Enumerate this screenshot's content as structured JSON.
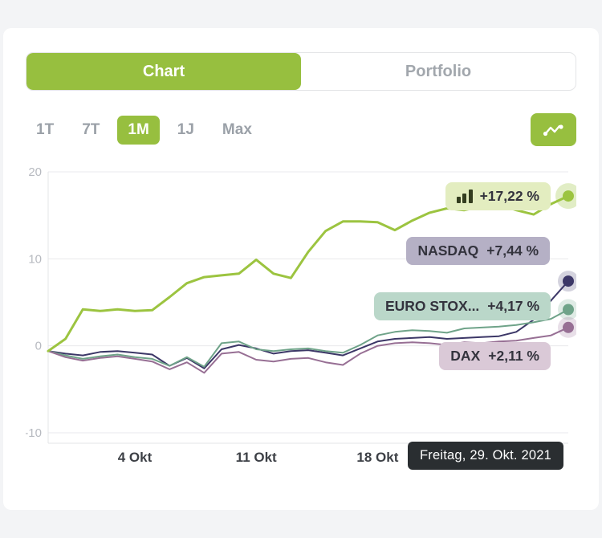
{
  "colors": {
    "accent": "#97bf3f",
    "page_bg": "#f3f4f6",
    "card_bg": "#ffffff",
    "muted_text": "#9ba1a8",
    "grid": "#e9eaec",
    "tooltip_bg": "#2a2e31"
  },
  "tabs": [
    {
      "label": "Chart",
      "active": true
    },
    {
      "label": "Portfolio",
      "active": false
    }
  ],
  "ranges": [
    {
      "label": "1T",
      "active": false
    },
    {
      "label": "7T",
      "active": false
    },
    {
      "label": "1M",
      "active": true
    },
    {
      "label": "1J",
      "active": false
    },
    {
      "label": "Max",
      "active": false
    }
  ],
  "chart_data": {
    "type": "line",
    "ylim": [
      -10,
      20
    ],
    "y_ticks": [
      20,
      10,
      0,
      -10
    ],
    "x_ticks": [
      {
        "label": "4 Okt",
        "day": 5
      },
      {
        "label": "11 Okt",
        "day": 12
      },
      {
        "label": "18 Okt",
        "day": 19
      }
    ],
    "days": 30,
    "grid": true,
    "tooltip": "Freitag, 29. Okt. 2021",
    "series": [
      {
        "name": "",
        "icon": "bar-chart-icon",
        "change_label": "+17,22 %",
        "color": "#9cc440",
        "badge_bg": "#e3edc0",
        "values": [
          -0.6,
          0.8,
          4.2,
          4.0,
          4.2,
          4.0,
          4.1,
          5.6,
          7.2,
          7.9,
          8.1,
          8.3,
          9.9,
          8.3,
          7.8,
          10.8,
          13.2,
          14.3,
          14.3,
          14.2,
          13.3,
          14.4,
          15.3,
          15.8,
          15.6,
          16.0,
          16.2,
          15.6,
          15.1,
          16.3,
          17.22
        ]
      },
      {
        "name": "NASDAQ",
        "change_label": "+7,44 %",
        "color": "#3c3767",
        "badge_bg": "#b5b0c5",
        "values": [
          -0.6,
          -0.9,
          -1.1,
          -0.7,
          -0.6,
          -0.8,
          -1.0,
          -2.3,
          -1.4,
          -2.6,
          -0.4,
          0.1,
          -0.3,
          -0.9,
          -0.6,
          -0.5,
          -0.8,
          -1.1,
          -0.3,
          0.5,
          0.8,
          0.9,
          1.0,
          0.8,
          0.9,
          1.0,
          1.1,
          1.6,
          3.0,
          5.2,
          7.44
        ]
      },
      {
        "name": "EURO STOX...",
        "change_label": "+4,17 %",
        "color": "#6fa389",
        "badge_bg": "#bad7c9",
        "values": [
          -0.6,
          -1.1,
          -1.5,
          -1.2,
          -1.0,
          -1.3,
          -1.5,
          -2.3,
          -1.3,
          -2.4,
          0.3,
          0.5,
          -0.4,
          -0.6,
          -0.4,
          -0.3,
          -0.6,
          -0.8,
          0.1,
          1.2,
          1.6,
          1.8,
          1.7,
          1.5,
          2.0,
          2.1,
          2.2,
          2.4,
          2.7,
          3.1,
          4.17
        ]
      },
      {
        "name": "DAX",
        "change_label": "+2,11 %",
        "color": "#976f94",
        "badge_bg": "#dac9d7",
        "values": [
          -0.6,
          -1.3,
          -1.7,
          -1.4,
          -1.2,
          -1.5,
          -1.8,
          -2.7,
          -1.9,
          -3.1,
          -0.9,
          -0.7,
          -1.6,
          -1.8,
          -1.5,
          -1.4,
          -1.9,
          -2.2,
          -0.9,
          0.0,
          0.3,
          0.4,
          0.3,
          0.1,
          0.4,
          0.3,
          0.5,
          0.6,
          0.9,
          1.2,
          2.11
        ]
      }
    ]
  }
}
